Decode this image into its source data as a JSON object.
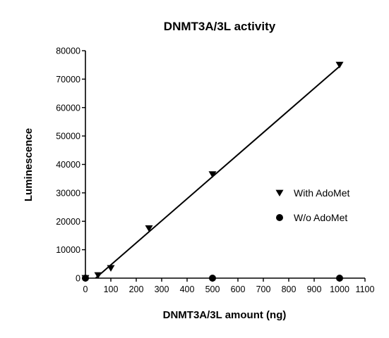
{
  "chart_data": {
    "type": "scatter",
    "title": "DNMT3A/3L activity",
    "xlabel": "DNMT3A/3L amount (ng)",
    "ylabel": "Luminescence",
    "xlim": [
      0,
      1100
    ],
    "ylim": [
      0,
      80000
    ],
    "x_ticks": [
      0,
      100,
      200,
      300,
      400,
      500,
      600,
      700,
      800,
      900,
      1000,
      1100
    ],
    "x_tick_labels": [
      "0",
      "100",
      "200",
      "300",
      "400",
      "500",
      "600",
      "700",
      "800",
      "900",
      "1000",
      "1100"
    ],
    "y_ticks": [
      0,
      10000,
      20000,
      30000,
      40000,
      50000,
      60000,
      70000,
      80000
    ],
    "y_tick_labels": [
      "0",
      "10000",
      "20000",
      "30000",
      "40000",
      "50000",
      "60000",
      "70000",
      "80000"
    ],
    "grid": false,
    "legend_position": "right",
    "series": [
      {
        "name": "With AdoMet",
        "marker": "triangle-down",
        "color": "#000000",
        "x": [
          0,
          50,
          100,
          250,
          500,
          1000
        ],
        "y": [
          0,
          1000,
          3500,
          17500,
          36500,
          75000
        ],
        "fit_line": {
          "x": [
            40,
            1000
          ],
          "y": [
            0,
            74500
          ]
        }
      },
      {
        "name": "W/o AdoMet",
        "marker": "circle",
        "color": "#000000",
        "x": [
          0,
          500,
          1000
        ],
        "y": [
          0,
          0,
          0
        ]
      }
    ]
  }
}
